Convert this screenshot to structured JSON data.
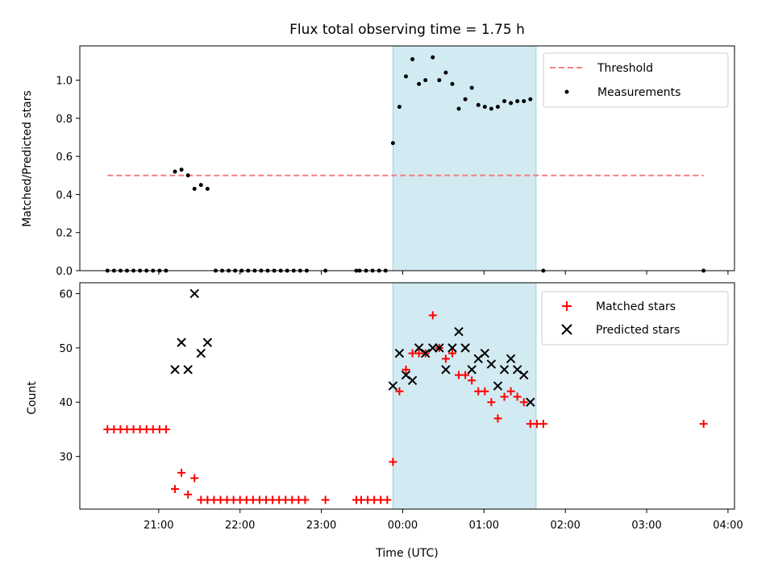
{
  "chart_data": {
    "type": "scatter",
    "title": "Flux total observing time = 1.75 h",
    "xlabel": "Time (UTC)",
    "x_tick_labels": [
      "21:00",
      "22:00",
      "23:00",
      "00:00",
      "01:00",
      "02:00",
      "03:00",
      "04:00"
    ],
    "x_tick_values": [
      0.0,
      1.0,
      2.0,
      3.0,
      4.0,
      5.0,
      6.0,
      7.0
    ],
    "xlim": [
      -0.97,
      7.08
    ],
    "highlight_span": {
      "start": 2.88,
      "end": 4.64,
      "color": "#add8e6"
    },
    "panels": [
      {
        "ylabel": "Matched/Predicted stars",
        "ylim": [
          0,
          1.18
        ],
        "y_ticks": [
          0.0,
          0.2,
          0.4,
          0.6,
          0.8,
          1.0
        ],
        "y_tick_labels": [
          "0.0",
          "0.2",
          "0.4",
          "0.6",
          "0.8",
          "1.0"
        ],
        "threshold": {
          "name": "Threshold",
          "value": 0.5,
          "x_start": -0.63,
          "x_end": 6.7,
          "color": "#f08080"
        },
        "measurements": {
          "name": "Measurements",
          "color": "#000000",
          "points": [
            [
              -0.63,
              0
            ],
            [
              -0.55,
              0
            ],
            [
              -0.47,
              0
            ],
            [
              -0.39,
              0
            ],
            [
              -0.31,
              0
            ],
            [
              -0.23,
              0
            ],
            [
              -0.15,
              0
            ],
            [
              -0.07,
              0
            ],
            [
              0.01,
              0
            ],
            [
              0.09,
              0
            ],
            [
              0.2,
              0.52
            ],
            [
              0.28,
              0.53
            ],
            [
              0.36,
              0.5
            ],
            [
              0.44,
              0.43
            ],
            [
              0.52,
              0.45
            ],
            [
              0.6,
              0.43
            ],
            [
              0.7,
              0
            ],
            [
              0.78,
              0
            ],
            [
              0.86,
              0
            ],
            [
              0.94,
              0
            ],
            [
              1.02,
              0
            ],
            [
              1.1,
              0
            ],
            [
              1.18,
              0
            ],
            [
              1.26,
              0
            ],
            [
              1.34,
              0
            ],
            [
              1.42,
              0
            ],
            [
              1.5,
              0
            ],
            [
              1.58,
              0
            ],
            [
              1.66,
              0
            ],
            [
              1.74,
              0
            ],
            [
              1.82,
              0
            ],
            [
              2.05,
              0
            ],
            [
              2.43,
              0
            ],
            [
              2.47,
              0
            ],
            [
              2.55,
              0
            ],
            [
              2.63,
              0
            ],
            [
              2.71,
              0
            ],
            [
              2.79,
              0
            ],
            [
              2.88,
              0.67
            ],
            [
              2.96,
              0.86
            ],
            [
              3.04,
              1.02
            ],
            [
              3.12,
              1.11
            ],
            [
              3.2,
              0.98
            ],
            [
              3.28,
              1.0
            ],
            [
              3.37,
              1.12
            ],
            [
              3.45,
              1.0
            ],
            [
              3.53,
              1.04
            ],
            [
              3.61,
              0.98
            ],
            [
              3.69,
              0.85
            ],
            [
              3.77,
              0.9
            ],
            [
              3.85,
              0.96
            ],
            [
              3.93,
              0.87
            ],
            [
              4.01,
              0.86
            ],
            [
              4.09,
              0.85
            ],
            [
              4.17,
              0.86
            ],
            [
              4.25,
              0.89
            ],
            [
              4.33,
              0.88
            ],
            [
              4.41,
              0.89
            ],
            [
              4.49,
              0.89
            ],
            [
              4.57,
              0.9
            ],
            [
              4.73,
              0
            ],
            [
              6.7,
              0
            ]
          ]
        }
      },
      {
        "ylabel": "Count",
        "ylim": [
          20.3,
          62
        ],
        "y_ticks": [
          30,
          40,
          50,
          60
        ],
        "y_tick_labels": [
          "30",
          "40",
          "50",
          "60"
        ],
        "matched": {
          "name": "Matched stars",
          "color": "#ff0000",
          "points": [
            [
              -0.63,
              35
            ],
            [
              -0.55,
              35
            ],
            [
              -0.47,
              35
            ],
            [
              -0.39,
              35
            ],
            [
              -0.31,
              35
            ],
            [
              -0.23,
              35
            ],
            [
              -0.15,
              35
            ],
            [
              -0.07,
              35
            ],
            [
              0.01,
              35
            ],
            [
              0.09,
              35
            ],
            [
              0.2,
              24
            ],
            [
              0.28,
              27
            ],
            [
              0.36,
              23
            ],
            [
              0.44,
              26
            ],
            [
              0.52,
              22
            ],
            [
              0.6,
              22
            ],
            [
              0.68,
              22
            ],
            [
              0.76,
              22
            ],
            [
              0.84,
              22
            ],
            [
              0.92,
              22
            ],
            [
              1.0,
              22
            ],
            [
              1.08,
              22
            ],
            [
              1.16,
              22
            ],
            [
              1.24,
              22
            ],
            [
              1.32,
              22
            ],
            [
              1.4,
              22
            ],
            [
              1.48,
              22
            ],
            [
              1.56,
              22
            ],
            [
              1.64,
              22
            ],
            [
              1.72,
              22
            ],
            [
              1.8,
              22
            ],
            [
              2.05,
              22
            ],
            [
              2.43,
              22
            ],
            [
              2.49,
              22
            ],
            [
              2.57,
              22
            ],
            [
              2.65,
              22
            ],
            [
              2.73,
              22
            ],
            [
              2.81,
              22
            ],
            [
              2.88,
              29
            ],
            [
              2.96,
              42
            ],
            [
              3.04,
              46
            ],
            [
              3.12,
              49
            ],
            [
              3.2,
              49
            ],
            [
              3.28,
              49
            ],
            [
              3.37,
              56
            ],
            [
              3.45,
              50
            ],
            [
              3.53,
              48
            ],
            [
              3.61,
              49
            ],
            [
              3.69,
              45
            ],
            [
              3.77,
              45
            ],
            [
              3.85,
              44
            ],
            [
              3.93,
              42
            ],
            [
              4.01,
              42
            ],
            [
              4.09,
              40
            ],
            [
              4.17,
              37
            ],
            [
              4.25,
              41
            ],
            [
              4.33,
              42
            ],
            [
              4.41,
              41
            ],
            [
              4.49,
              40
            ],
            [
              4.57,
              36
            ],
            [
              4.65,
              36
            ],
            [
              4.73,
              36
            ],
            [
              6.7,
              36
            ]
          ]
        },
        "predicted": {
          "name": "Predicted stars",
          "color": "#000000",
          "points": [
            [
              0.2,
              46
            ],
            [
              0.28,
              51
            ],
            [
              0.36,
              46
            ],
            [
              0.44,
              60
            ],
            [
              0.52,
              49
            ],
            [
              0.6,
              51
            ],
            [
              2.88,
              43
            ],
            [
              2.96,
              49
            ],
            [
              3.04,
              45
            ],
            [
              3.12,
              44
            ],
            [
              3.2,
              50
            ],
            [
              3.28,
              49
            ],
            [
              3.37,
              50
            ],
            [
              3.45,
              50
            ],
            [
              3.53,
              46
            ],
            [
              3.61,
              50
            ],
            [
              3.69,
              53
            ],
            [
              3.77,
              50
            ],
            [
              3.85,
              46
            ],
            [
              3.93,
              48
            ],
            [
              4.01,
              49
            ],
            [
              4.09,
              47
            ],
            [
              4.17,
              43
            ],
            [
              4.25,
              46
            ],
            [
              4.33,
              48
            ],
            [
              4.41,
              46
            ],
            [
              4.49,
              45
            ],
            [
              4.57,
              40
            ]
          ]
        }
      }
    ]
  }
}
